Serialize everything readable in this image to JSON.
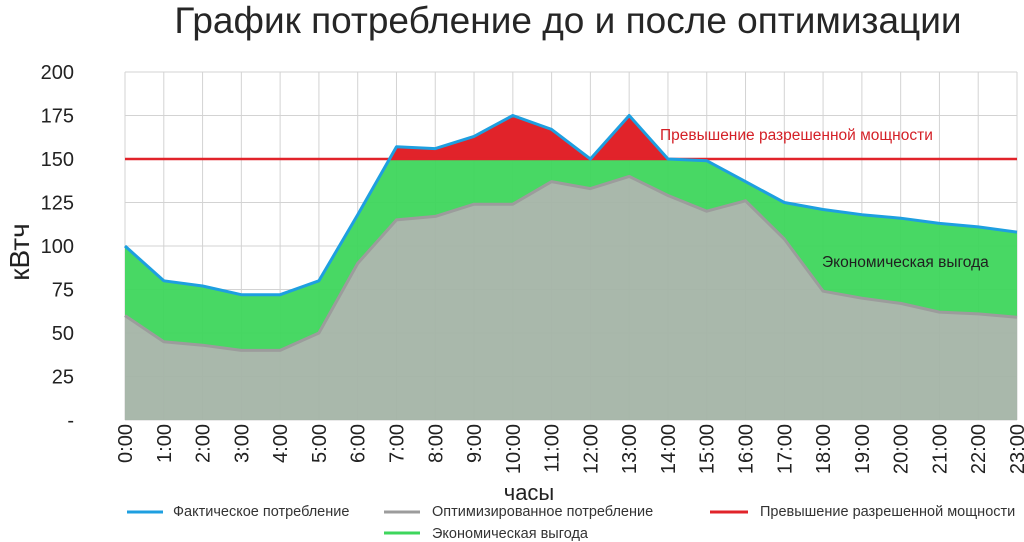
{
  "chart_data": {
    "type": "area",
    "title": "График потребление до и после оптимизации",
    "xlabel": "часы",
    "ylabel": "кВтч",
    "categories": [
      "0:00",
      "1:00",
      "2:00",
      "3:00",
      "4:00",
      "5:00",
      "6:00",
      "7:00",
      "8:00",
      "9:00",
      "10:00",
      "11:00",
      "12:00",
      "13:00",
      "14:00",
      "15:00",
      "16:00",
      "17:00",
      "18:00",
      "19:00",
      "20:00",
      "21:00",
      "22:00",
      "23:00"
    ],
    "ylim": [
      0,
      200
    ],
    "y_ticks": [
      0,
      25,
      50,
      75,
      100,
      125,
      150,
      175,
      200
    ],
    "y_tick_labels": [
      "-",
      "25",
      "50",
      "75",
      "100",
      "125",
      "150",
      "175",
      "200"
    ],
    "grid": true,
    "legend_position": "bottom",
    "series": [
      {
        "name": "Фактическое потребление",
        "color": "#1e9fe0",
        "values": [
          100,
          80,
          77,
          72,
          72,
          80,
          118,
          157,
          156,
          163,
          175,
          167,
          150,
          175,
          150,
          149,
          137,
          125,
          121,
          118,
          116,
          113,
          111,
          108
        ]
      },
      {
        "name": "Оптимизированное потребление",
        "color": "#9c9c9c",
        "fill": "#a4b4a7",
        "values": [
          60,
          45,
          43,
          40,
          40,
          50,
          90,
          115,
          117,
          124,
          124,
          137,
          133,
          140,
          129,
          120,
          126,
          104,
          74,
          70,
          67,
          62,
          61,
          59
        ]
      }
    ],
    "limit": {
      "name": "Превышение разрешенной мощности",
      "value": 150,
      "color": "#e1232a"
    },
    "savings": {
      "name": "Экономическая выгода",
      "color": "#3ed65c"
    },
    "annotations": [
      {
        "text": "Превышение разрешенной мощности",
        "color": "#d42027"
      },
      {
        "text": "Экономическая выгода",
        "color": "#1f1f1f"
      }
    ]
  }
}
